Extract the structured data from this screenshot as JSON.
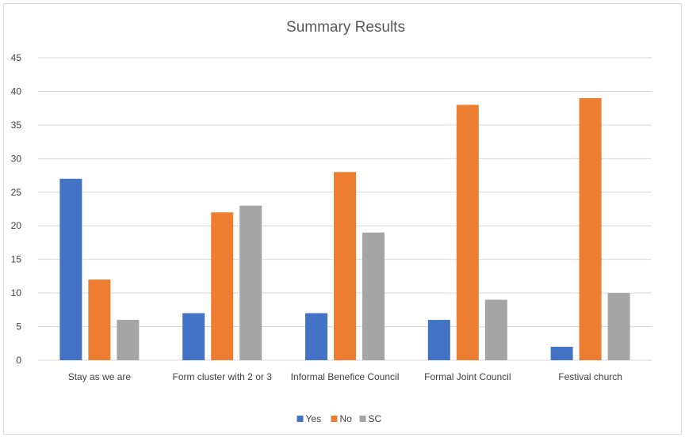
{
  "chart_data": {
    "type": "bar",
    "title": "Summary Results",
    "xlabel": "",
    "ylabel": "",
    "categories": [
      "Stay as we are",
      "Form cluster with 2 or 3",
      "Informal Benefice Council",
      "Formal Joint Council",
      "Festival church"
    ],
    "series": [
      {
        "name": "Yes",
        "color": "#4472c4",
        "values": [
          27,
          7,
          7,
          6,
          2
        ]
      },
      {
        "name": "No",
        "color": "#ed7d31",
        "values": [
          12,
          22,
          28,
          38,
          39
        ]
      },
      {
        "name": "SC",
        "color": "#a5a5a5",
        "values": [
          6,
          23,
          19,
          9,
          10
        ]
      }
    ],
    "ylim": [
      0,
      45
    ],
    "yticks": [
      0,
      5,
      10,
      15,
      20,
      25,
      30,
      35,
      40,
      45
    ],
    "grid": true,
    "legend": "bottom",
    "gridline_color": "#d9d9d9"
  }
}
